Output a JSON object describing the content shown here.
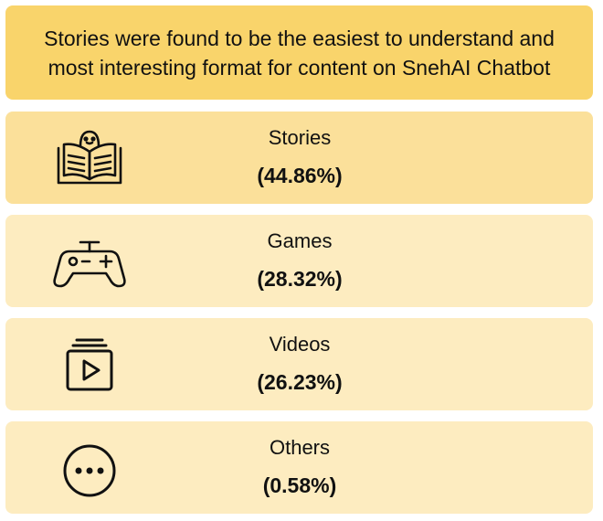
{
  "header": {
    "line1": "Stories were found to be the easiest to understand and",
    "line2": "most interesting format for content on SnehAI Chatbot"
  },
  "items": [
    {
      "label": "Stories",
      "value": "(44.86%)",
      "icon": "storybook-icon",
      "color": "#fbe09a"
    },
    {
      "label": "Games",
      "value": "(28.32%)",
      "icon": "gamepad-icon",
      "color": "#fdecc0"
    },
    {
      "label": "Videos",
      "value": "(26.23%)",
      "icon": "video-library-icon",
      "color": "#fdecc0"
    },
    {
      "label": "Others",
      "value": "(0.58%)",
      "icon": "more-horizontal-icon",
      "color": "#fdecc0"
    }
  ],
  "colors": {
    "header_bg": "#f9d46b",
    "stroke": "#111111"
  }
}
